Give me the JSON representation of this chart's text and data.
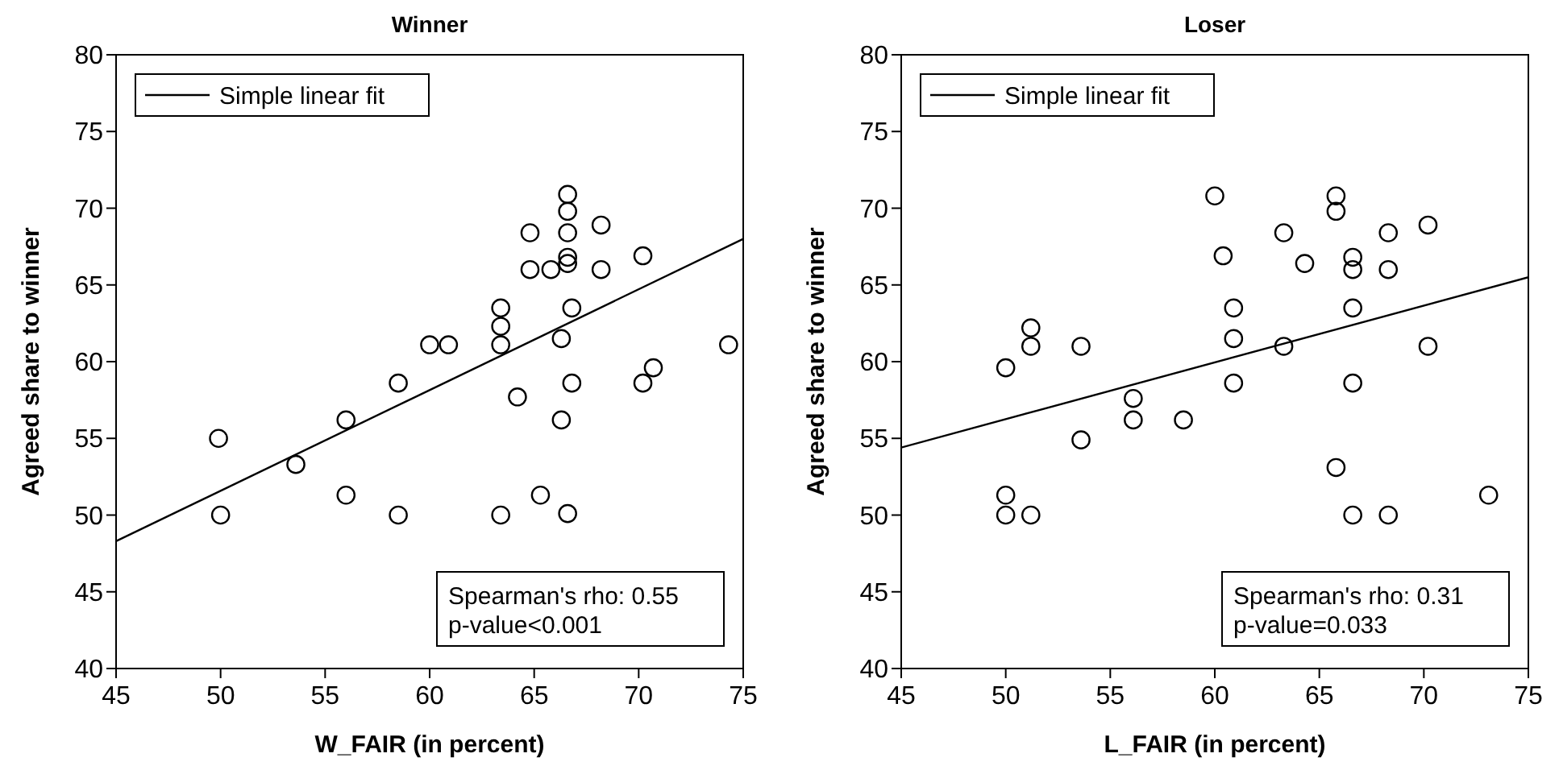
{
  "chart_data": [
    {
      "type": "scatter",
      "title": "Winner",
      "xlabel": "W_FAIR (in percent)",
      "ylabel": "Agreed share to winner",
      "xlim": [
        45,
        75
      ],
      "ylim": [
        40,
        80
      ],
      "xticks": [
        45,
        50,
        55,
        60,
        65,
        70,
        75
      ],
      "yticks": [
        40,
        45,
        50,
        55,
        60,
        65,
        70,
        75,
        80
      ],
      "grid": false,
      "legend": "top left",
      "marker": "circle",
      "annotations": [
        "Spearman's rho: 0.55",
        "p-value<0.001"
      ],
      "series": [
        {
          "color": "#000000",
          "x": [
            49.9,
            50,
            53.6,
            56,
            56,
            58.5,
            58.5,
            60,
            60.9,
            63.4,
            63.4,
            63.4,
            63.4,
            64.2,
            64.8,
            64.8,
            65.8,
            65.3,
            66.3,
            66.3,
            66.6,
            66.6,
            66.6,
            66.6,
            66.6,
            66.6,
            66.8,
            66.8,
            68.2,
            68.2,
            70.2,
            70.2,
            70.7,
            74.3
          ],
          "values": [
            55,
            50,
            53.3,
            56.2,
            51.3,
            58.6,
            50,
            61.1,
            61.1,
            63.5,
            62.3,
            61.1,
            50,
            57.7,
            68.4,
            66,
            66,
            51.3,
            61.5,
            56.2,
            70.9,
            69.8,
            68.4,
            66.8,
            66.4,
            50.1,
            63.5,
            58.6,
            68.9,
            66,
            66.9,
            58.6,
            59.6,
            61.1
          ]
        },
        {
          "type": "line",
          "name": "Simple linear fit",
          "color": "#000000",
          "marker": "none",
          "line_style": "solid",
          "x": [
            45,
            75
          ],
          "values": [
            48.3,
            68
          ]
        }
      ]
    },
    {
      "type": "scatter",
      "title": "Loser",
      "xlabel": "L_FAIR (in percent)",
      "ylabel": "Agreed share to winner",
      "xlim": [
        45,
        75
      ],
      "ylim": [
        40,
        80
      ],
      "xticks": [
        45,
        50,
        55,
        60,
        65,
        70,
        75
      ],
      "yticks": [
        40,
        45,
        50,
        55,
        60,
        65,
        70,
        75,
        80
      ],
      "grid": false,
      "legend": "top left",
      "marker": "circle",
      "annotations": [
        "Spearman's rho: 0.31",
        "p-value=0.033"
      ],
      "series": [
        {
          "color": "#000000",
          "x": [
            50,
            50,
            50,
            51.2,
            51.2,
            51.2,
            53.6,
            53.6,
            56.1,
            56.1,
            58.5,
            60,
            60.4,
            60.9,
            60.9,
            60.9,
            63.3,
            63.3,
            64.3,
            65.8,
            65.8,
            65.8,
            66.6,
            66.6,
            66.6,
            66.6,
            66.6,
            68.3,
            68.3,
            68.3,
            70.2,
            70.2,
            73.1
          ],
          "values": [
            59.6,
            51.3,
            50,
            50,
            62.2,
            61,
            61,
            54.9,
            57.6,
            56.2,
            56.2,
            70.8,
            66.9,
            63.5,
            61.5,
            58.6,
            68.4,
            61,
            66.4,
            70.8,
            69.8,
            53.1,
            66.8,
            66,
            63.5,
            58.6,
            50,
            68.4,
            66,
            50,
            68.9,
            61,
            51.3
          ]
        },
        {
          "type": "line",
          "name": "Simple linear fit",
          "color": "#000000",
          "marker": "none",
          "line_style": "solid",
          "x": [
            45,
            75
          ],
          "values": [
            54.4,
            65.5
          ]
        }
      ]
    }
  ]
}
